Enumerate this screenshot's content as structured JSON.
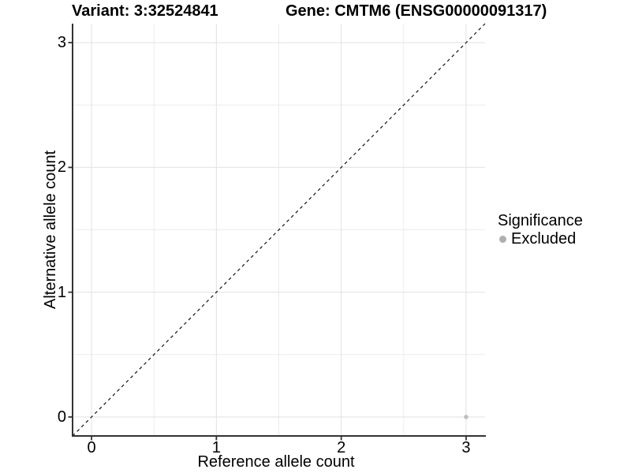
{
  "titles": {
    "variant": "Variant: 3:32524841",
    "gene": "Gene: CMTM6 (ENSG00000091317)"
  },
  "chart_data": {
    "type": "scatter",
    "xlabel": "Reference allele count",
    "ylabel": "Alternative allele count",
    "x_ticks": [
      0,
      1,
      2,
      3
    ],
    "y_ticks": [
      0,
      1,
      2,
      3
    ],
    "x_minor": [
      0.5,
      1.5,
      2.5
    ],
    "y_minor": [
      0.5,
      1.5,
      2.5
    ],
    "xlim": [
      -0.152,
      3.152
    ],
    "ylim": [
      -0.152,
      3.152
    ],
    "grid": true,
    "points": [
      {
        "x": 3,
        "y": 0,
        "significance": "Excluded"
      }
    ],
    "identity_line": {
      "slope": 1,
      "intercept": 0,
      "style": "dashed",
      "color": "#111111"
    },
    "legend": {
      "title": "Significance",
      "position": "right",
      "items": [
        {
          "label": "Excluded",
          "color": "#AFAFAF"
        }
      ]
    },
    "colors": {
      "point": "#BFBFBF",
      "grid_major": "#E4E4E4",
      "grid_minor": "#ECECEC",
      "axis": "#333333"
    }
  }
}
